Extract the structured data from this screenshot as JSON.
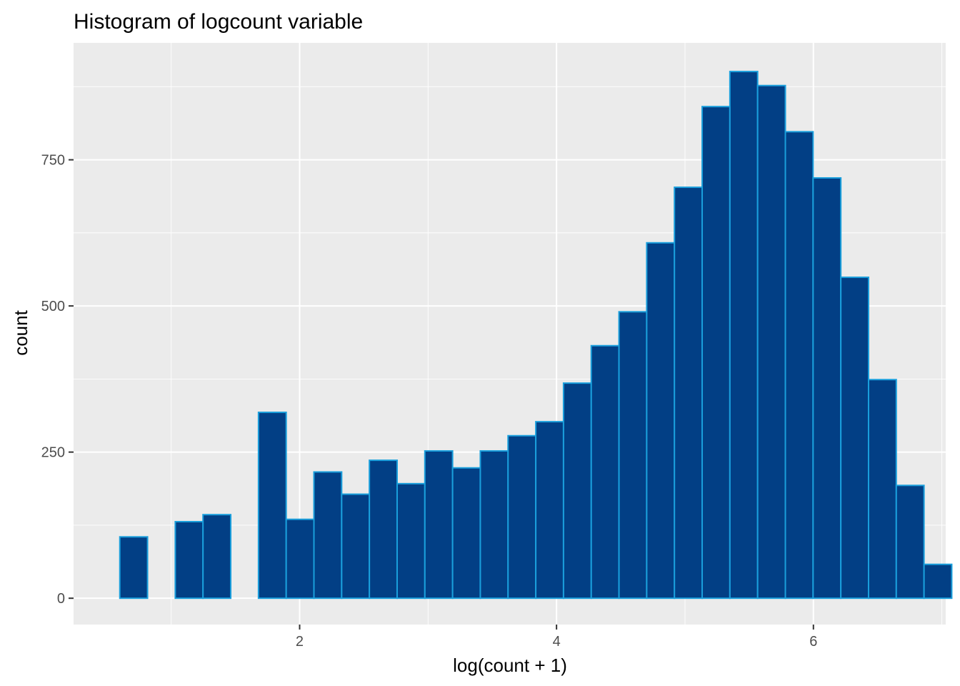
{
  "chart_data": {
    "type": "bar",
    "title": "Histogram of logcount variable",
    "xlabel": "log(count + 1)",
    "ylabel": "count",
    "xlim": [
      0.24,
      7.03
    ],
    "ylim": [
      -45,
      950
    ],
    "x_ticks": [
      2,
      4,
      6
    ],
    "y_ticks": [
      0,
      250,
      500,
      750
    ],
    "bin_width": 0.2159,
    "bins_start": [
      0.6,
      0.8159,
      1.0318,
      1.2477,
      1.4636,
      1.6795,
      1.8954,
      2.1113,
      2.3272,
      2.5431,
      2.759,
      2.9749,
      3.1908,
      3.4067,
      3.6226,
      3.8385,
      4.0544,
      4.2703,
      4.4862,
      4.7021,
      4.918,
      5.1339,
      5.3498,
      5.5657,
      5.7816,
      5.9975,
      6.2134,
      6.4293,
      6.6452,
      6.8611
    ],
    "values": [
      105,
      0,
      131,
      143,
      0,
      318,
      135,
      216,
      178,
      236,
      196,
      252,
      223,
      252,
      278,
      302,
      368,
      432,
      490,
      608,
      703,
      841,
      901,
      877,
      798,
      719,
      549,
      374,
      193,
      58
    ],
    "grid": true,
    "colors": {
      "fill": "#023f85",
      "stroke": "#1a9fdc",
      "panel": "#ebebeb",
      "grid": "#ffffff"
    }
  }
}
